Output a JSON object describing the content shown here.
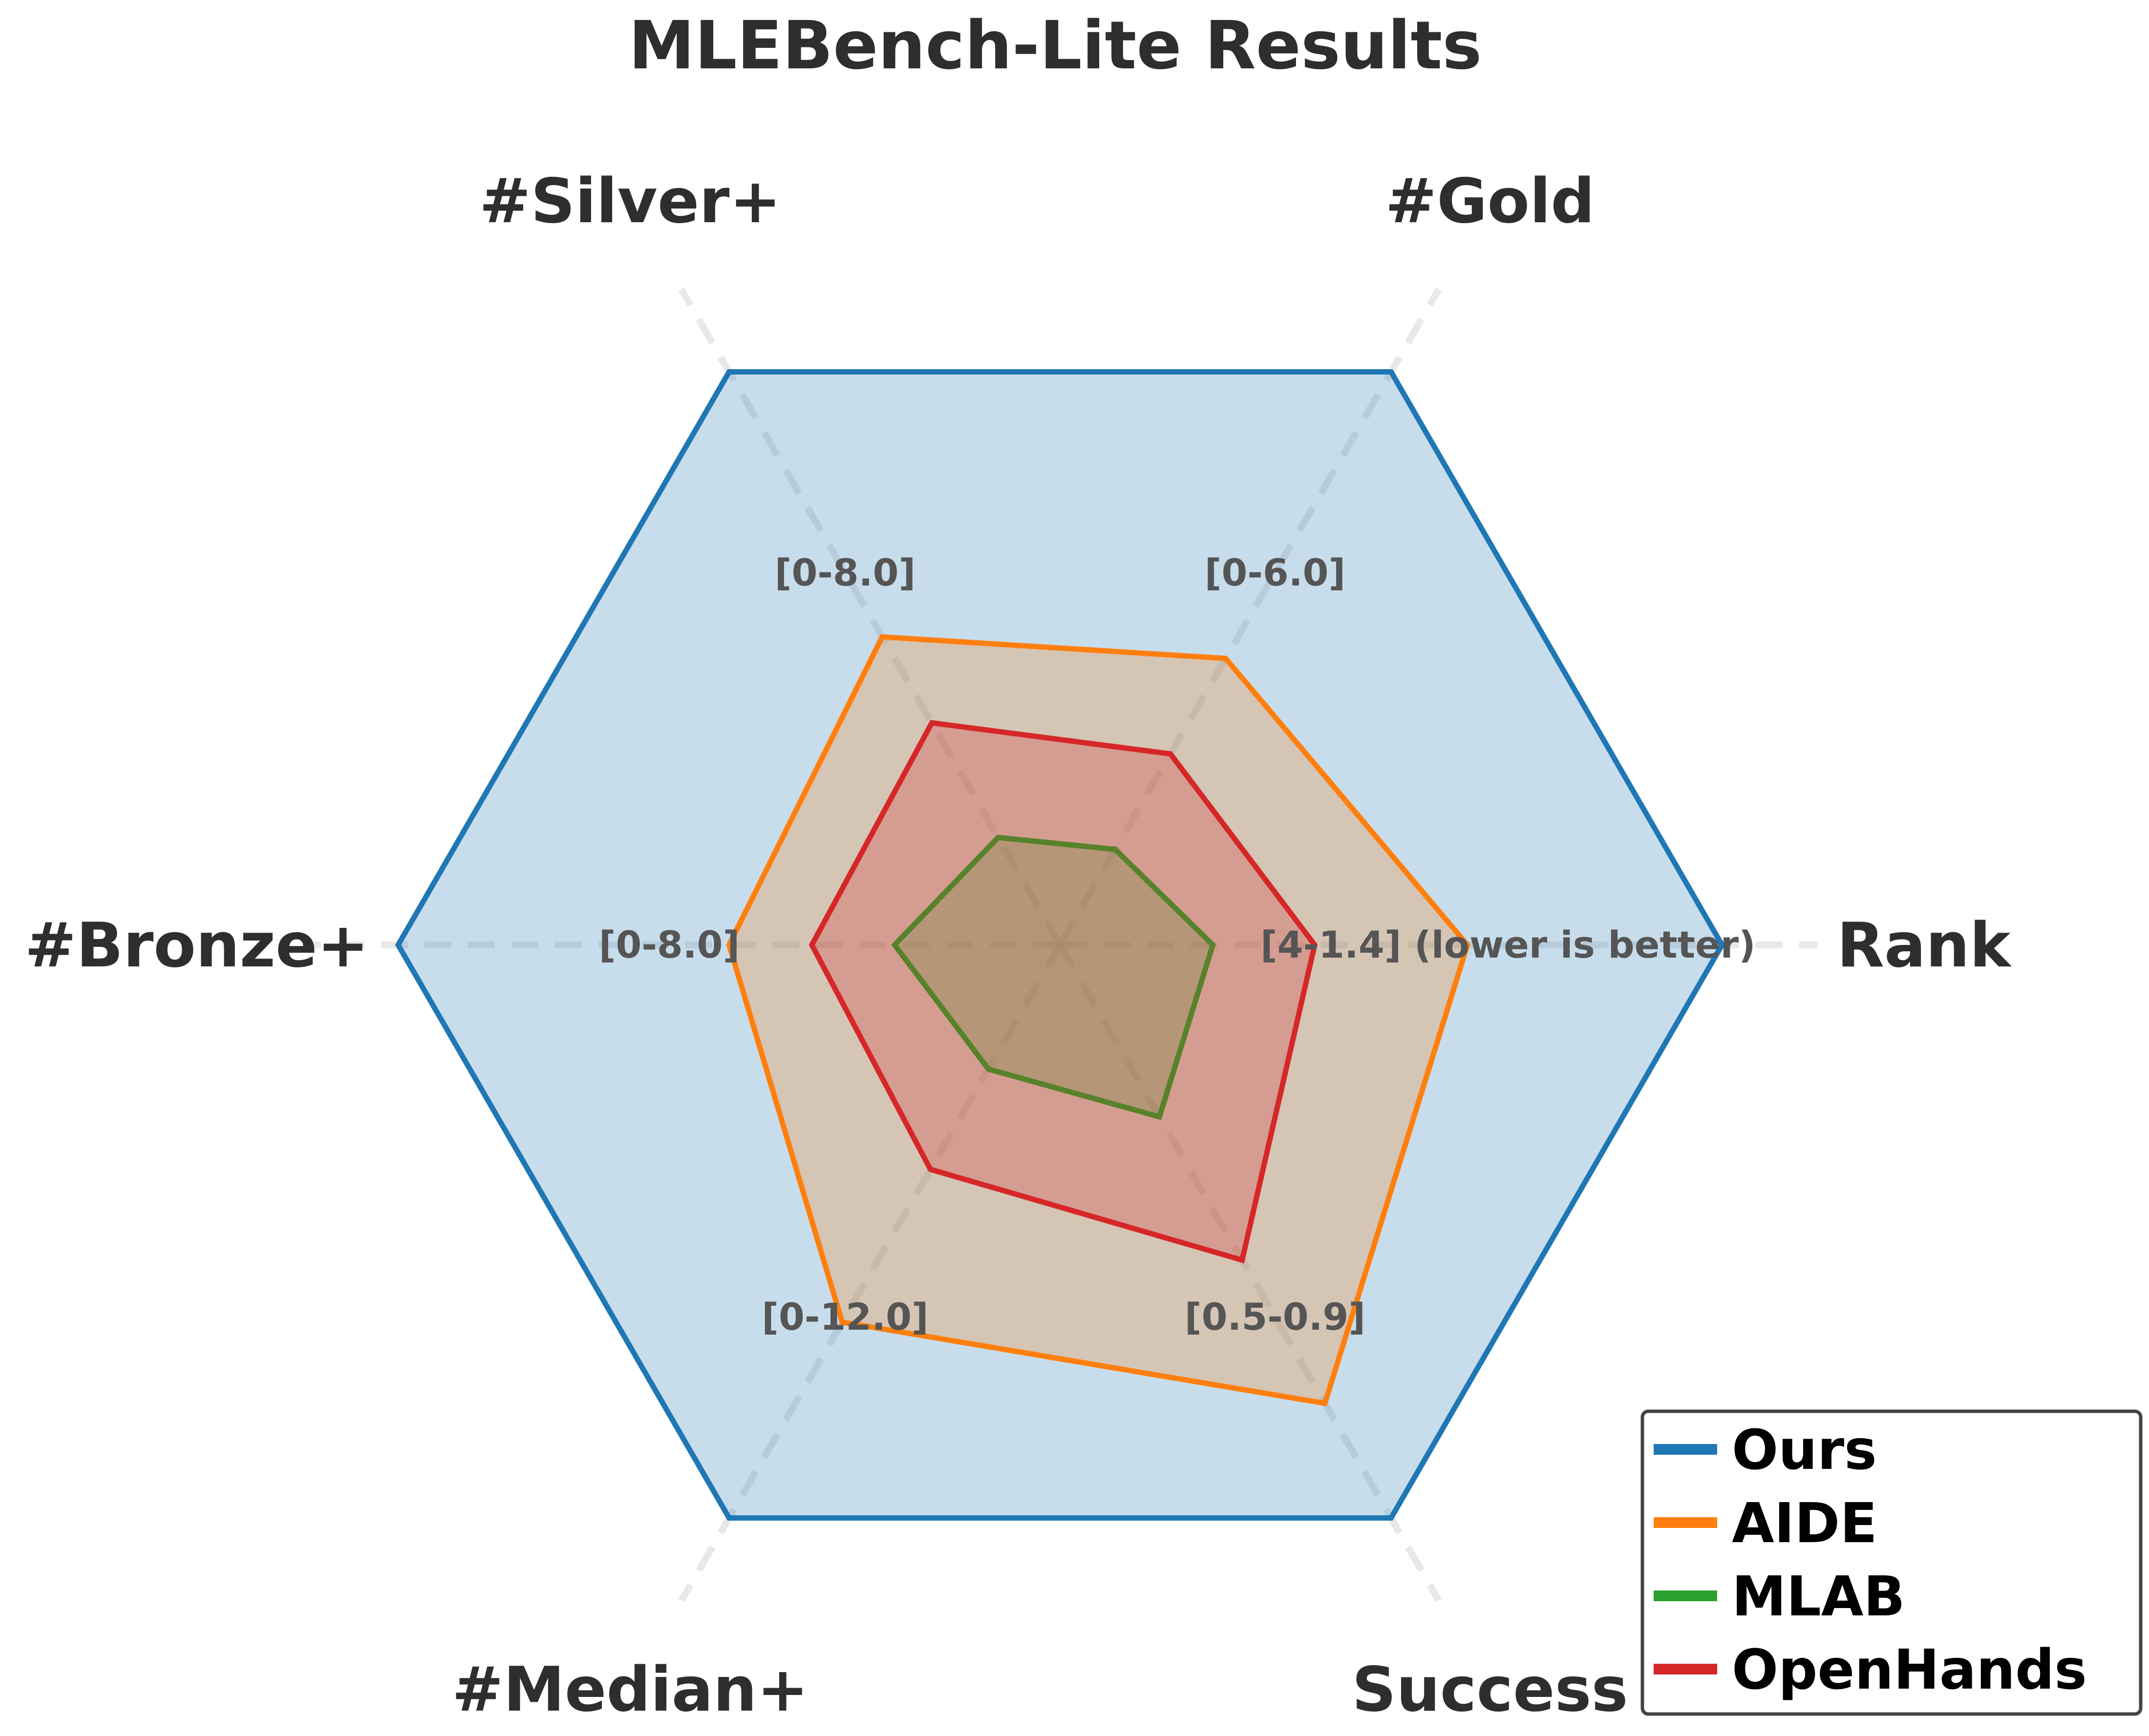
{
  "chart_data": {
    "type": "radar",
    "title": "MLEBench-Lite Results",
    "axes": [
      {
        "name": "Rank",
        "range_label": "[4-1.4] (lower is better)",
        "min": 4,
        "max": 1.4
      },
      {
        "name": "#Gold",
        "range_label": "[0-6.0]",
        "min": 0,
        "max": 6.0
      },
      {
        "name": "#Silver+",
        "range_label": "[0-8.0]",
        "min": 0,
        "max": 8.0
      },
      {
        "name": "#Bronze+",
        "range_label": "[0-8.0]",
        "min": 0,
        "max": 8.0
      },
      {
        "name": "#Median+",
        "range_label": "[0-12.0]",
        "min": 0,
        "max": 12.0
      },
      {
        "name": "Success",
        "range_label": "[0.5-0.9]",
        "min": 0.5,
        "max": 0.9
      }
    ],
    "series": [
      {
        "name": "Ours",
        "color": "#1f77b4",
        "values": [
          1.4,
          6.0,
          8.0,
          8.0,
          12.0,
          0.9
        ]
      },
      {
        "name": "AIDE",
        "color": "#ff7f0e",
        "values": [
          2.4,
          3.0,
          4.3,
          4.0,
          7.9,
          0.82
        ]
      },
      {
        "name": "MLAB",
        "color": "#2ca02c",
        "values": [
          3.4,
          1.0,
          1.5,
          2.0,
          2.6,
          0.62
        ]
      },
      {
        "name": "OpenHands",
        "color": "#d62728",
        "values": [
          3.0,
          2.0,
          3.1,
          3.0,
          4.7,
          0.72
        ]
      }
    ],
    "grid": true,
    "legend": "bottom-right"
  }
}
